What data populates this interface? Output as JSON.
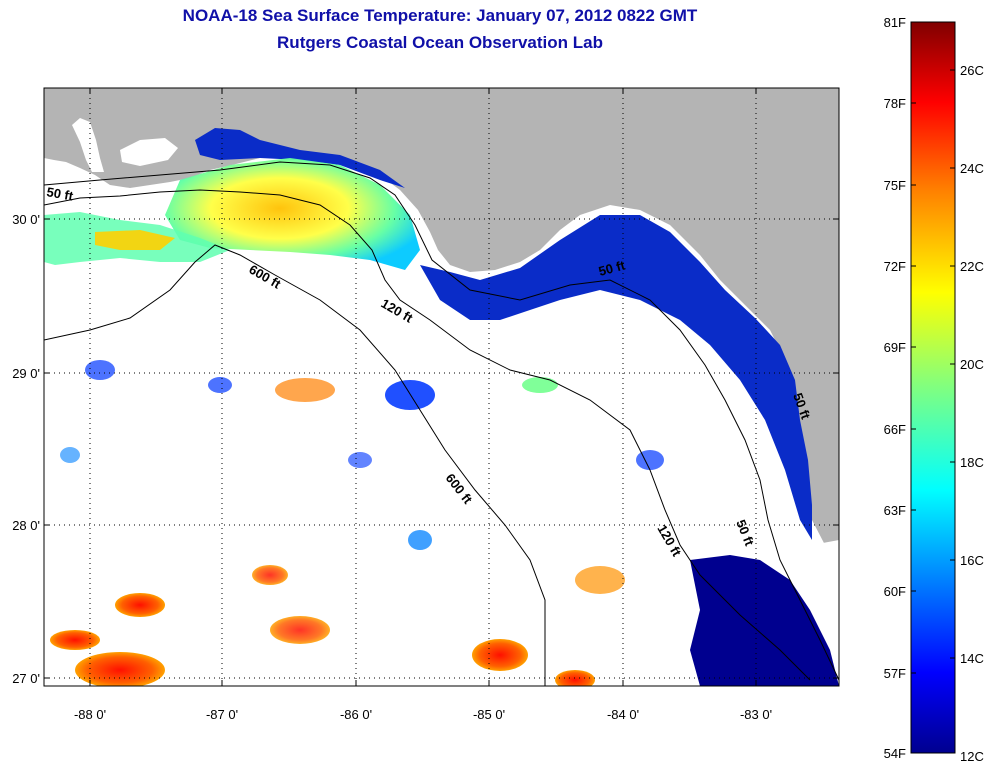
{
  "title": "NOAA-18 Sea Surface Temperature:  January 07, 2012 0822 GMT",
  "subtitle": "Rutgers Coastal Ocean Observation Lab",
  "map": {
    "lon_ticks": [
      "-88 0'",
      "-87 0'",
      "-86 0'",
      "-85 0'",
      "-84 0'",
      "-83 0'"
    ],
    "lat_ticks": [
      "30 0'",
      "29 0'",
      "28 0'",
      "27 0'"
    ],
    "contour_labels": [
      "600 ft",
      "120 ft",
      "600 ft",
      "120 ft",
      "50 ft",
      "50 ft",
      "50 ft",
      "50 ft"
    ],
    "land_color": "#b4b4b4",
    "ocean_color": "#ffffff"
  },
  "colorbar": {
    "fahrenheit_labels": [
      "81F",
      "78F",
      "75F",
      "72F",
      "69F",
      "66F",
      "63F",
      "60F",
      "57F",
      "54F"
    ],
    "celsius_labels": [
      "26C",
      "24C",
      "22C",
      "20C",
      "18C",
      "16C",
      "14C",
      "12C"
    ],
    "min_f": 54,
    "max_f": 81,
    "colors": [
      "#00008f",
      "#0000ff",
      "#0080ff",
      "#00ffff",
      "#80ff80",
      "#ffff00",
      "#ff8000",
      "#ff0000",
      "#800000"
    ]
  }
}
